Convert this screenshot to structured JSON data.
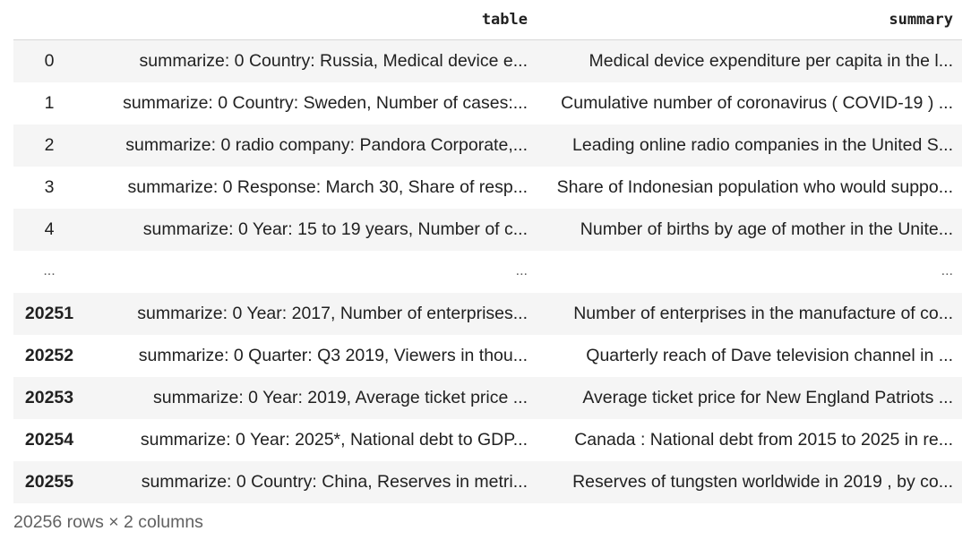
{
  "columns": {
    "index_label": "",
    "table_label": "table",
    "summary_label": "summary"
  },
  "rows": [
    {
      "index": "0",
      "table": "summarize: 0 Country: Russia, Medical device e...",
      "summary": "Medical device expenditure per capita in the l..."
    },
    {
      "index": "1",
      "table": "summarize: 0 Country: Sweden, Number of cases:...",
      "summary": "Cumulative number of coronavirus ( COVID-19 ) ..."
    },
    {
      "index": "2",
      "table": "summarize: 0 radio company: Pandora Corporate,...",
      "summary": "Leading online radio companies in the United S..."
    },
    {
      "index": "3",
      "table": "summarize: 0 Response: March 30, Share of resp...",
      "summary": "Share of Indonesian population who would suppo..."
    },
    {
      "index": "4",
      "table": "summarize: 0 Year: 15 to 19 years, Number of c...",
      "summary": "Number of births by age of mother in the Unite..."
    },
    {
      "index": "...",
      "table": "...",
      "summary": "..."
    },
    {
      "index": "20251",
      "table": "summarize: 0 Year: 2017, Number of enterprises...",
      "summary": "Number of enterprises in the manufacture of co..."
    },
    {
      "index": "20252",
      "table": "summarize: 0 Quarter: Q3 2019, Viewers in thou...",
      "summary": "Quarterly reach of Dave television channel in ..."
    },
    {
      "index": "20253",
      "table": "summarize: 0 Year: 2019, Average ticket price ...",
      "summary": "Average ticket price for New England Patriots ..."
    },
    {
      "index": "20254",
      "table": "summarize: 0 Year: 2025*, National debt to GDP...",
      "summary": "Canada : National debt from 2015 to 2025 in re..."
    },
    {
      "index": "20255",
      "table": "summarize: 0 Country: China, Reserves in metri...",
      "summary": "Reserves of tungsten worldwide in 2019 , by co..."
    }
  ],
  "footer": {
    "shape_text": "20256 rows × 2 columns"
  }
}
